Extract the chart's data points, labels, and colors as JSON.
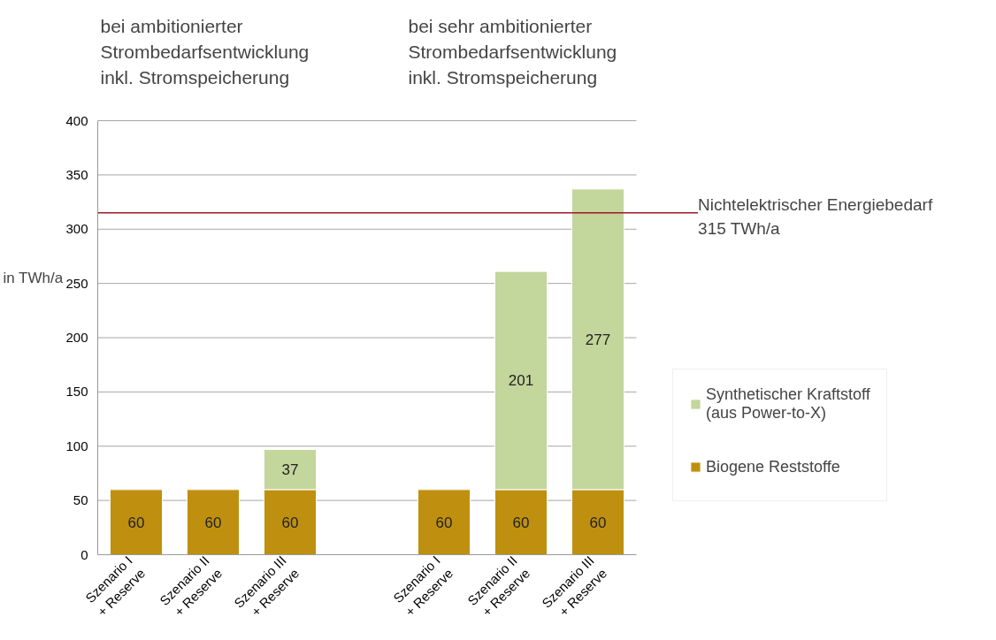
{
  "chart_data": {
    "type": "bar",
    "stacked": true,
    "ylabel": "in TWh/a",
    "categories": [
      "Szenario I\n+ Reserve",
      "Szenario II\n+ Reserve",
      "Szenario III\n+ Reserve",
      null,
      "Szenario I\n+ Reserve",
      "Szenario II\n+ Reserve",
      "Szenario III\n+ Reserve"
    ],
    "series": [
      {
        "name": "Biogene Reststoffe",
        "color": "#bf9010",
        "values": [
          60,
          60,
          60,
          null,
          60,
          60,
          60
        ]
      },
      {
        "name": "Synthetischer Kraftstoff\n(aus Power-to-X)",
        "color": "#c3d69b",
        "values": [
          null,
          null,
          37,
          null,
          null,
          201,
          277
        ]
      }
    ],
    "ylim": [
      0,
      400
    ],
    "yticks": [
      0,
      50,
      100,
      150,
      200,
      250,
      300,
      350,
      400
    ],
    "grid": "y",
    "data_labels": true,
    "legend": "right",
    "ref_lines": [
      {
        "axis": "y",
        "value": 315,
        "label": "Nichtelektrischer Energiebedarf\n315 TWh/a",
        "color": "#a01828"
      }
    ],
    "annotations": [
      "bei ambitionierter\nStrombedarfsentwicklung\ninkl. Stromspeicherung",
      "bei sehr ambitionierter\nStrombedarfsentwicklung\ninkl. Stromspeicherung"
    ]
  }
}
